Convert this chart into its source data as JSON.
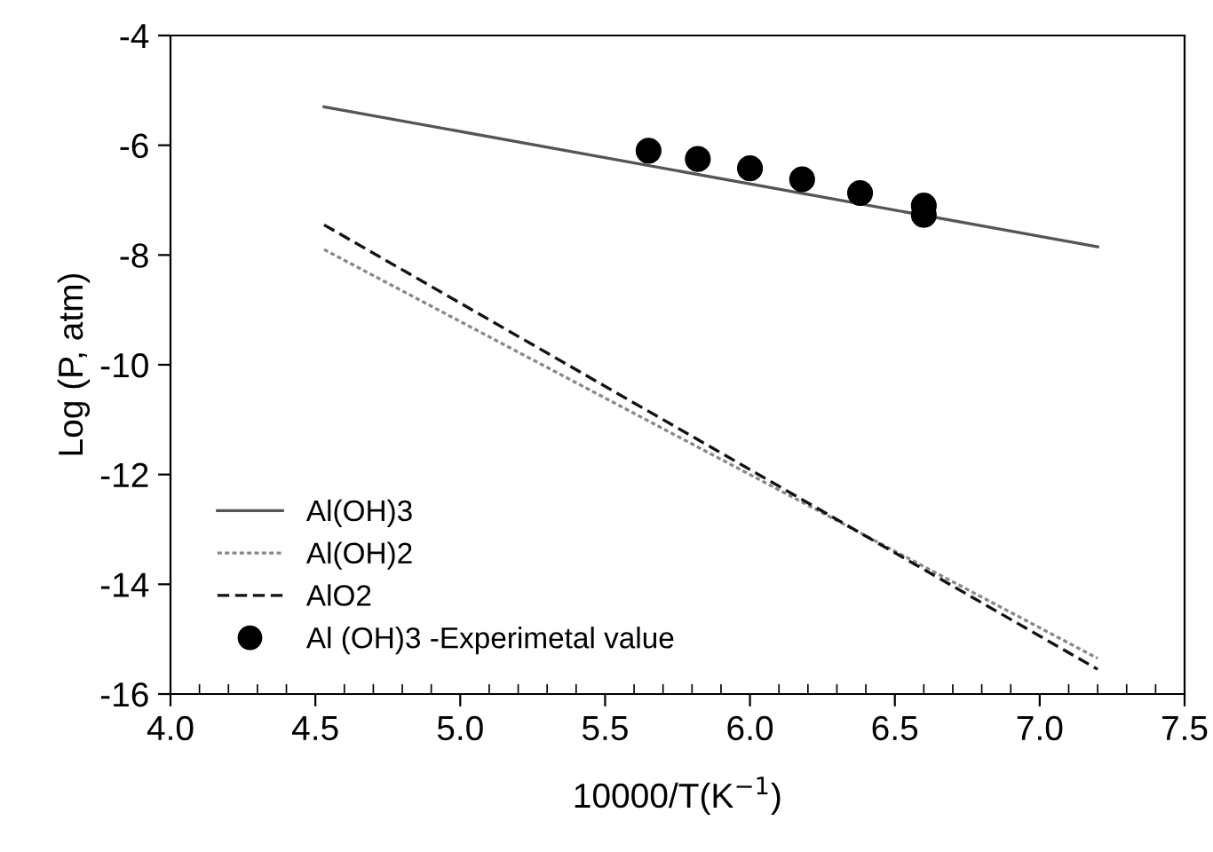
{
  "chart_data": {
    "type": "line",
    "xlabel": "10000/T(K$^{−1}$)",
    "ylabel": "Log (P, atm)",
    "xlim": [
      4.0,
      7.5
    ],
    "ylim": [
      -16,
      -4
    ],
    "xticks": [
      {
        "value": 4.0,
        "label": "4.0"
      },
      {
        "value": 4.1,
        "label": null
      },
      {
        "value": 4.2,
        "label": null
      },
      {
        "value": 4.3,
        "label": null
      },
      {
        "value": 4.4,
        "label": null
      },
      {
        "value": 4.5,
        "label": "4.5"
      },
      {
        "value": 4.6,
        "label": null
      },
      {
        "value": 4.7,
        "label": null
      },
      {
        "value": 4.8,
        "label": null
      },
      {
        "value": 4.9,
        "label": null
      },
      {
        "value": 5.0,
        "label": "5.0"
      },
      {
        "value": 5.1,
        "label": null
      },
      {
        "value": 5.2,
        "label": null
      },
      {
        "value": 5.3,
        "label": null
      },
      {
        "value": 5.4,
        "label": null
      },
      {
        "value": 5.5,
        "label": "5.5"
      },
      {
        "value": 5.6,
        "label": null
      },
      {
        "value": 5.7,
        "label": null
      },
      {
        "value": 5.8,
        "label": null
      },
      {
        "value": 5.9,
        "label": null
      },
      {
        "value": 6.0,
        "label": "6.0"
      },
      {
        "value": 6.1,
        "label": null
      },
      {
        "value": 6.2,
        "label": null
      },
      {
        "value": 6.3,
        "label": null
      },
      {
        "value": 6.4,
        "label": null
      },
      {
        "value": 6.5,
        "label": "6.5"
      },
      {
        "value": 6.6,
        "label": null
      },
      {
        "value": 6.7,
        "label": null
      },
      {
        "value": 6.8,
        "label": null
      },
      {
        "value": 6.9,
        "label": null
      },
      {
        "value": 7.0,
        "label": "7.0"
      },
      {
        "value": 7.1,
        "label": null
      },
      {
        "value": 7.2,
        "label": null
      },
      {
        "value": 7.3,
        "label": null
      },
      {
        "value": 7.4,
        "label": null
      },
      {
        "value": 7.5,
        "label": "7.5"
      }
    ],
    "yticks": [
      -16,
      -14,
      -12,
      -10,
      -8,
      -6,
      -4
    ],
    "grid": false,
    "legend": "bottom left",
    "series": [
      {
        "name": "Al(OH)3",
        "color": "#555555",
        "line_style": "solid",
        "marker": "none",
        "x": [
          4.53,
          7.2
        ],
        "values": [
          -5.3,
          -7.85
        ]
      },
      {
        "name": "Al(OH)2",
        "color": "#888888",
        "line_style": "dotted",
        "marker": "none",
        "x": [
          4.53,
          7.2
        ],
        "values": [
          -7.9,
          -15.35
        ]
      },
      {
        "name": "AlO2",
        "color": "#111111",
        "line_style": "dashed",
        "marker": "none",
        "x": [
          4.53,
          7.2
        ],
        "values": [
          -7.45,
          -15.55
        ]
      },
      {
        "name": "Al (OH)3 -Experimetal value",
        "type": "scatter",
        "color": "#000000",
        "marker": "circle",
        "x": [
          5.65,
          5.82,
          6.0,
          6.18,
          6.38,
          6.6,
          6.6
        ],
        "values": [
          -6.1,
          -6.25,
          -6.42,
          -6.62,
          -6.87,
          -7.1,
          -7.27
        ]
      }
    ]
  }
}
